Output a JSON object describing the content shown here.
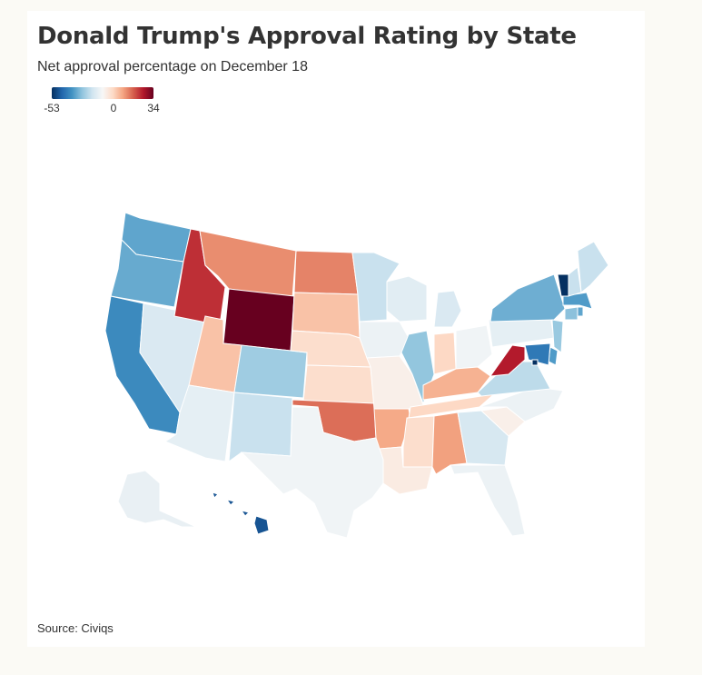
{
  "header": {
    "title": "Donald Trump's Approval Rating by State",
    "subtitle": "Net approval percentage on December 18"
  },
  "legend": {
    "min_label": "-53",
    "mid_label": "0",
    "max_label": "34",
    "min_value": -53,
    "max_value": 34,
    "colors": [
      "#053061",
      "#2166ac",
      "#4393c3",
      "#92c5de",
      "#d1e5f0",
      "#f7f7f7",
      "#fddbc7",
      "#f4a582",
      "#d6604d",
      "#b2182b",
      "#67001f"
    ]
  },
  "footer": {
    "source": "Source: Civiqs"
  },
  "map_data": {
    "WA": -28,
    "OR": -27,
    "CA": -34,
    "NV": -8,
    "ID": 25,
    "MT": 16,
    "WY": 34,
    "UT": 10,
    "CO": -19,
    "AZ": -5,
    "NM": -12,
    "ND": 17,
    "SD": 10,
    "NE": 6,
    "KS": 6,
    "OK": 19,
    "TX": -2,
    "MN": -12,
    "IA": -3,
    "MO": 2,
    "AR": 13,
    "LA": 3,
    "WI": -6,
    "IL": -21,
    "MI": -8,
    "IN": 7,
    "OH": -2,
    "KY": 12,
    "TN": 7,
    "MS": 6,
    "AL": 14,
    "GA": -9,
    "FL": -3,
    "SC": 2,
    "NC": -3,
    "VA": -14,
    "WV": 27,
    "PA": -5,
    "NY": -26,
    "NJ": -20,
    "DE": -30,
    "MD": -38,
    "DC": -53,
    "CT": -22,
    "RI": -28,
    "MA": -30,
    "VT": -53,
    "NH": -12,
    "ME": -12,
    "AK": -4,
    "HI": -46
  }
}
